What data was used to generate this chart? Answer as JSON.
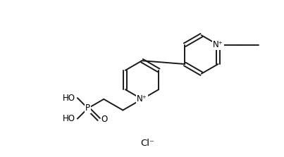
{
  "background_color": "#ffffff",
  "line_color": "#1a1a1a",
  "line_width": 1.4,
  "font_size": 8.5,
  "figsize": [
    4.03,
    2.23
  ],
  "dpi": 100,
  "cl_label": "Cl⁻",
  "n_plus": "N⁺",
  "ho": "HO",
  "p_label": "P",
  "o_label": "O"
}
